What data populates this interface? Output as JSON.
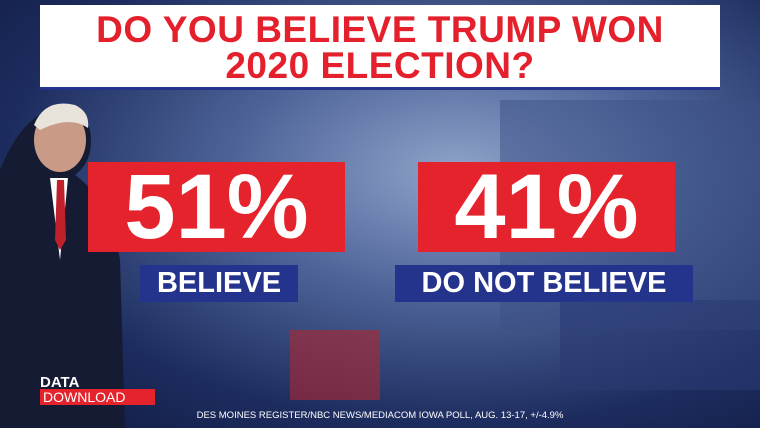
{
  "header": {
    "title_lines": [
      "DO YOU BELIEVE TRUMP WON",
      "2020 ELECTION?"
    ]
  },
  "stats": [
    {
      "value": "51%",
      "label": "BELIEVE"
    },
    {
      "value": "41%",
      "label": "DO NOT BELIEVE"
    }
  ],
  "branding": {
    "top": "DATA",
    "bottom": "DOWNLOAD"
  },
  "source": "DES MOINES REGISTER/NBC NEWS/MEDIACOM IOWA POLL, AUG. 13-17, +/-4.9%"
}
